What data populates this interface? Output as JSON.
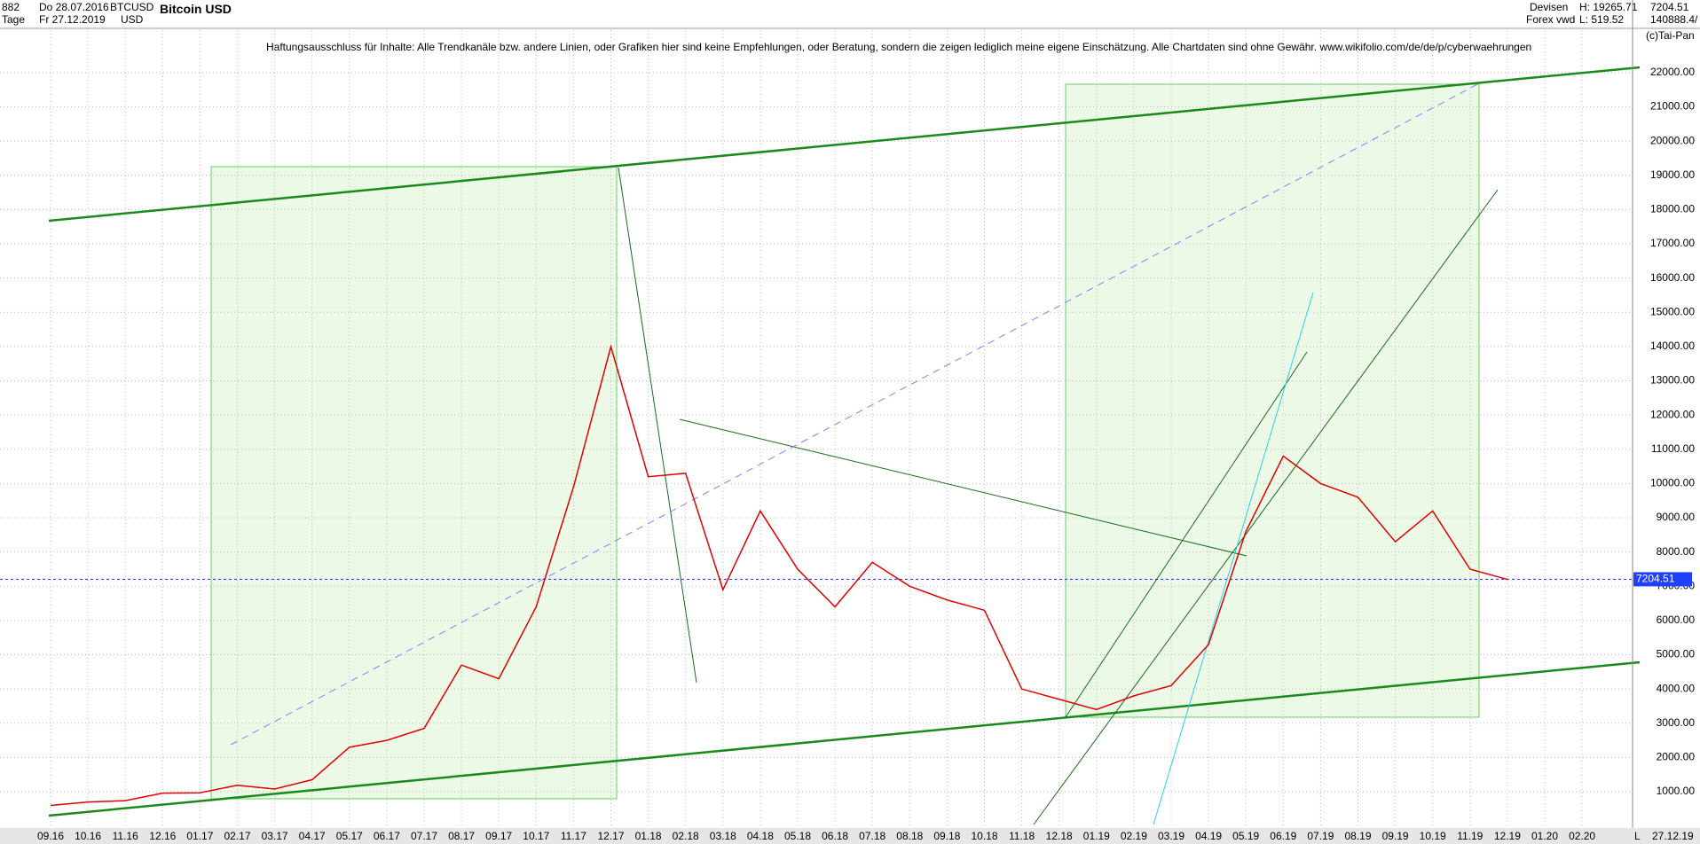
{
  "header": {
    "id": "882",
    "from": "Do 28.07.2016",
    "symbol": "BTCUSD",
    "currency": "USD",
    "period": "Tage",
    "to": "Fr 27.12.2019",
    "title": "Bitcoin USD",
    "market": "Devisen",
    "source": "Forex vwd",
    "high": "H: 19265.71",
    "low": "L: 519.52",
    "volume": "140888.4/",
    "copyright": "(c)Tai-Pan",
    "disclaimer": "Haftungsausschluss für Inhalte: Alle Trendkanäle bzw. andere Linien, oder Grafiken hier sind keine Empfehlungen, oder Beratung, sondern die zeigen lediglich meine eigene Einschätzung. Alle Chartdaten sind ohne Gewähr.  www.wikifolio.com/de/de/p/cyberwaehrungen",
    "end_date": "27.12.19",
    "scale_mark": "L"
  },
  "chart_data": {
    "type": "line",
    "categories": [
      "09.16",
      "10.16",
      "11.16",
      "12.16",
      "01.17",
      "02.17",
      "03.17",
      "04.17",
      "05.17",
      "06.17",
      "07.17",
      "08.17",
      "09.17",
      "10.17",
      "11.17",
      "12.17",
      "01.18",
      "02.18",
      "03.18",
      "04.18",
      "05.18",
      "06.18",
      "07.18",
      "08.18",
      "09.18",
      "10.18",
      "11.18",
      "12.18",
      "01.19",
      "02.19",
      "03.19",
      "04.19",
      "05.19",
      "06.19",
      "07.19",
      "08.19",
      "09.19",
      "10.19",
      "11.19",
      "12.19",
      "01.20",
      "02.20"
    ],
    "series": [
      {
        "name": "BTCUSD",
        "color": "#e00000",
        "values": [
          600,
          700,
          740,
          960,
          970,
          1190,
          1080,
          1350,
          2300,
          2500,
          2850,
          4700,
          4300,
          6400,
          9900,
          14000,
          10200,
          10300,
          6900,
          9200,
          7500,
          6400,
          7700,
          7000,
          6600,
          6300,
          4000,
          3700,
          3400,
          3800,
          4100,
          5300,
          8600,
          10800,
          10000,
          9600,
          8300,
          9200,
          7500,
          7200,
          null,
          null
        ]
      }
    ],
    "last": 7204.51,
    "ylim": [
      -60,
      23240
    ],
    "yticks": [
      {
        "value": 1000,
        "label": "1000.00"
      },
      {
        "value": 2000,
        "label": "2000.00"
      },
      {
        "value": 3000,
        "label": "3000.00"
      },
      {
        "value": 4000,
        "label": "4000.00"
      },
      {
        "value": 5000,
        "label": "5000.00"
      },
      {
        "value": 6000,
        "label": "6000.00"
      },
      {
        "value": 7000,
        "label": "7000.00"
      },
      {
        "value": 8000,
        "label": "8000.00"
      },
      {
        "value": 9000,
        "label": "9000.00"
      },
      {
        "value": 10000,
        "label": "10000.00"
      },
      {
        "value": 11000,
        "label": "11000.00"
      },
      {
        "value": 12000,
        "label": "12000.00"
      },
      {
        "value": 13000,
        "label": "13000.00"
      },
      {
        "value": 14000,
        "label": "14000.00"
      },
      {
        "value": 15000,
        "label": "15000.00"
      },
      {
        "value": 16000,
        "label": "16000.00"
      },
      {
        "value": 17000,
        "label": "17000.00"
      },
      {
        "value": 18000,
        "label": "18000.00"
      },
      {
        "value": 19000,
        "label": "19000.00"
      },
      {
        "value": 20000,
        "label": "20000.00"
      },
      {
        "value": 21000,
        "label": "21000.00"
      },
      {
        "value": 22000,
        "label": "22000.00"
      }
    ],
    "grid": true
  }
}
